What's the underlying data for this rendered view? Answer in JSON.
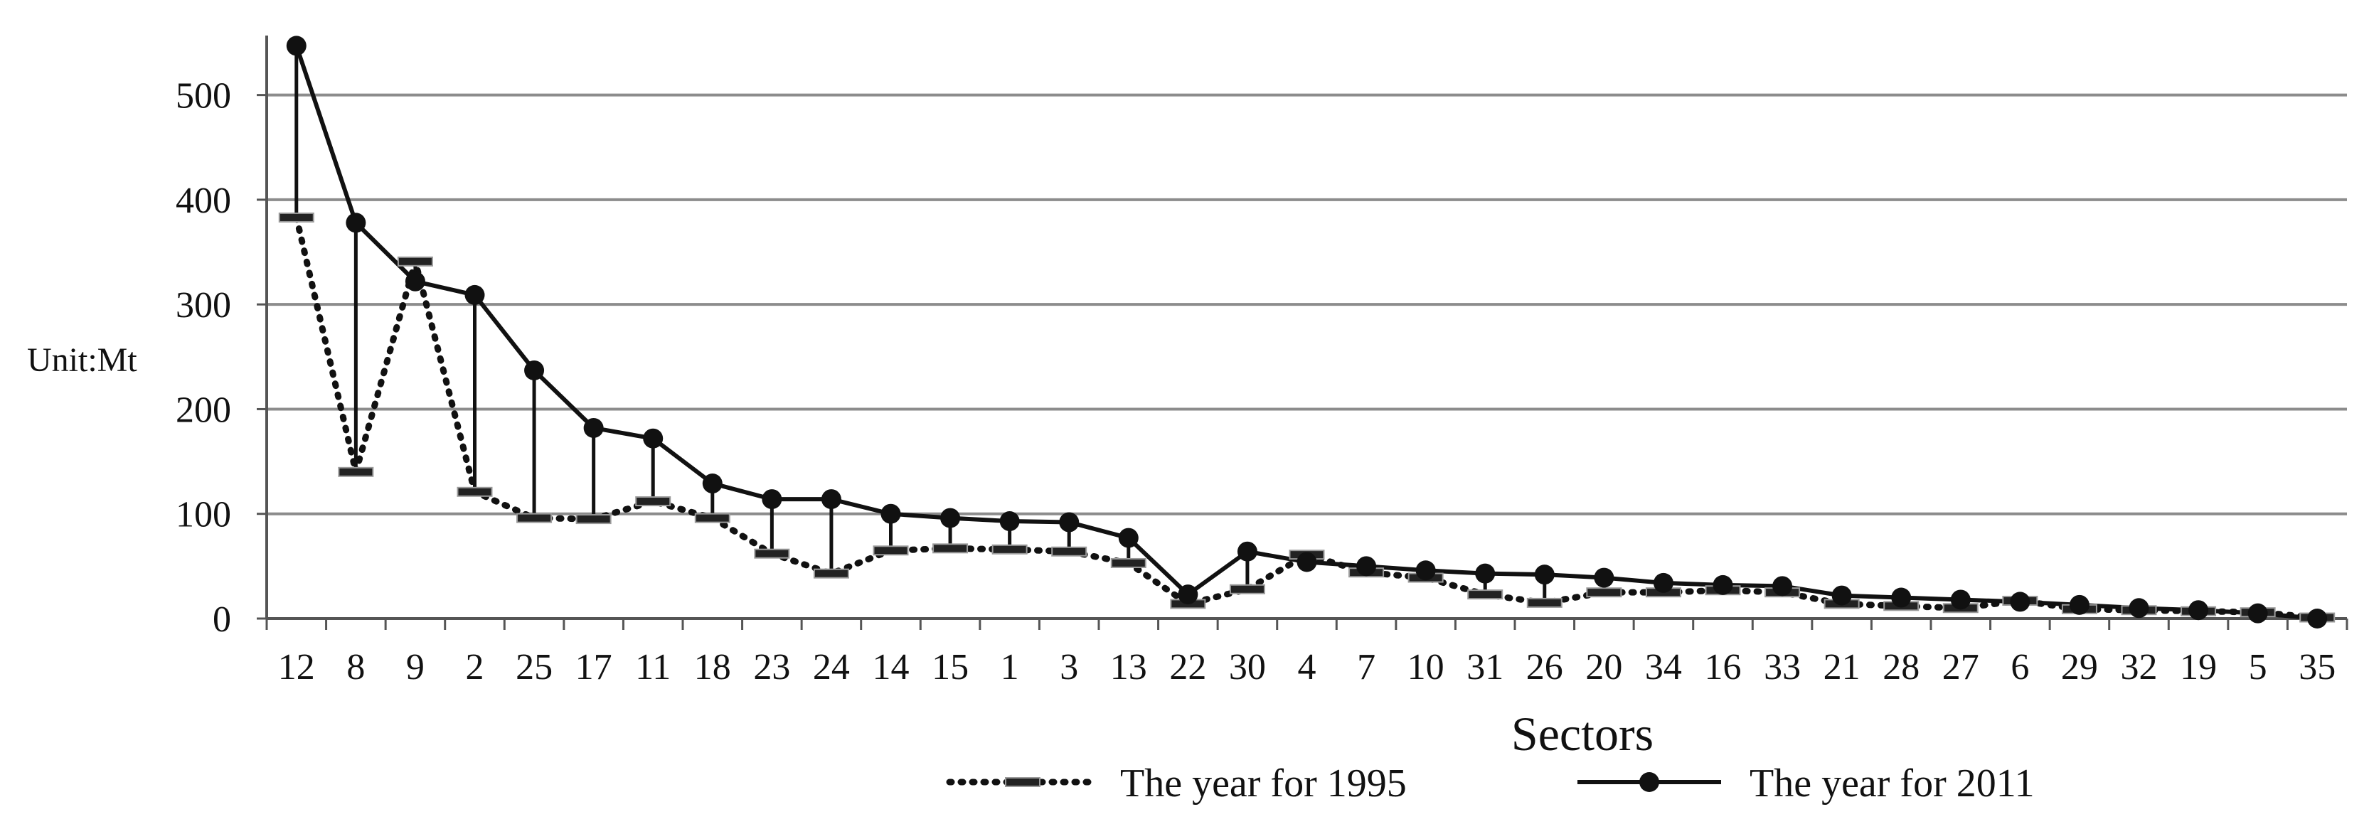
{
  "chart_data": {
    "type": "line",
    "xlabel": "Sectors",
    "ylabel": "Unit:Mt",
    "ylim": [
      0,
      550
    ],
    "yticks": [
      0,
      100,
      200,
      300,
      400,
      500
    ],
    "grid": true,
    "legend_position": "bottom",
    "categories": [
      "12",
      "8",
      "9",
      "2",
      "25",
      "17",
      "11",
      "18",
      "23",
      "24",
      "14",
      "15",
      "1",
      "3",
      "13",
      "22",
      "30",
      "4",
      "7",
      "10",
      "31",
      "26",
      "20",
      "34",
      "16",
      "33",
      "21",
      "28",
      "27",
      "6",
      "29",
      "32",
      "19",
      "5",
      "35"
    ],
    "series": [
      {
        "name": "The year for 1995",
        "style": "dotted",
        "values": [
          383,
          140,
          341,
          121,
          96,
          95,
          112,
          96,
          62,
          43,
          65,
          67,
          66,
          64,
          53,
          14,
          28,
          61,
          44,
          39,
          23,
          15,
          25,
          25,
          27,
          25,
          14,
          12,
          10,
          17,
          9,
          8,
          7,
          6,
          1
        ]
      },
      {
        "name": "The year for 2011",
        "style": "solid-marker",
        "values": [
          547,
          378,
          322,
          309,
          237,
          182,
          172,
          129,
          114,
          114,
          100,
          96,
          93,
          92,
          77,
          23,
          64,
          54,
          50,
          46,
          43,
          42,
          39,
          34,
          32,
          31,
          22,
          20,
          18,
          16,
          13,
          10,
          8,
          5,
          0
        ]
      }
    ],
    "colors": {
      "series_1995": "#111111",
      "series_2011": "#111111",
      "grid": "#8c8c8c",
      "marker_grey": "#9a9a9a"
    }
  }
}
